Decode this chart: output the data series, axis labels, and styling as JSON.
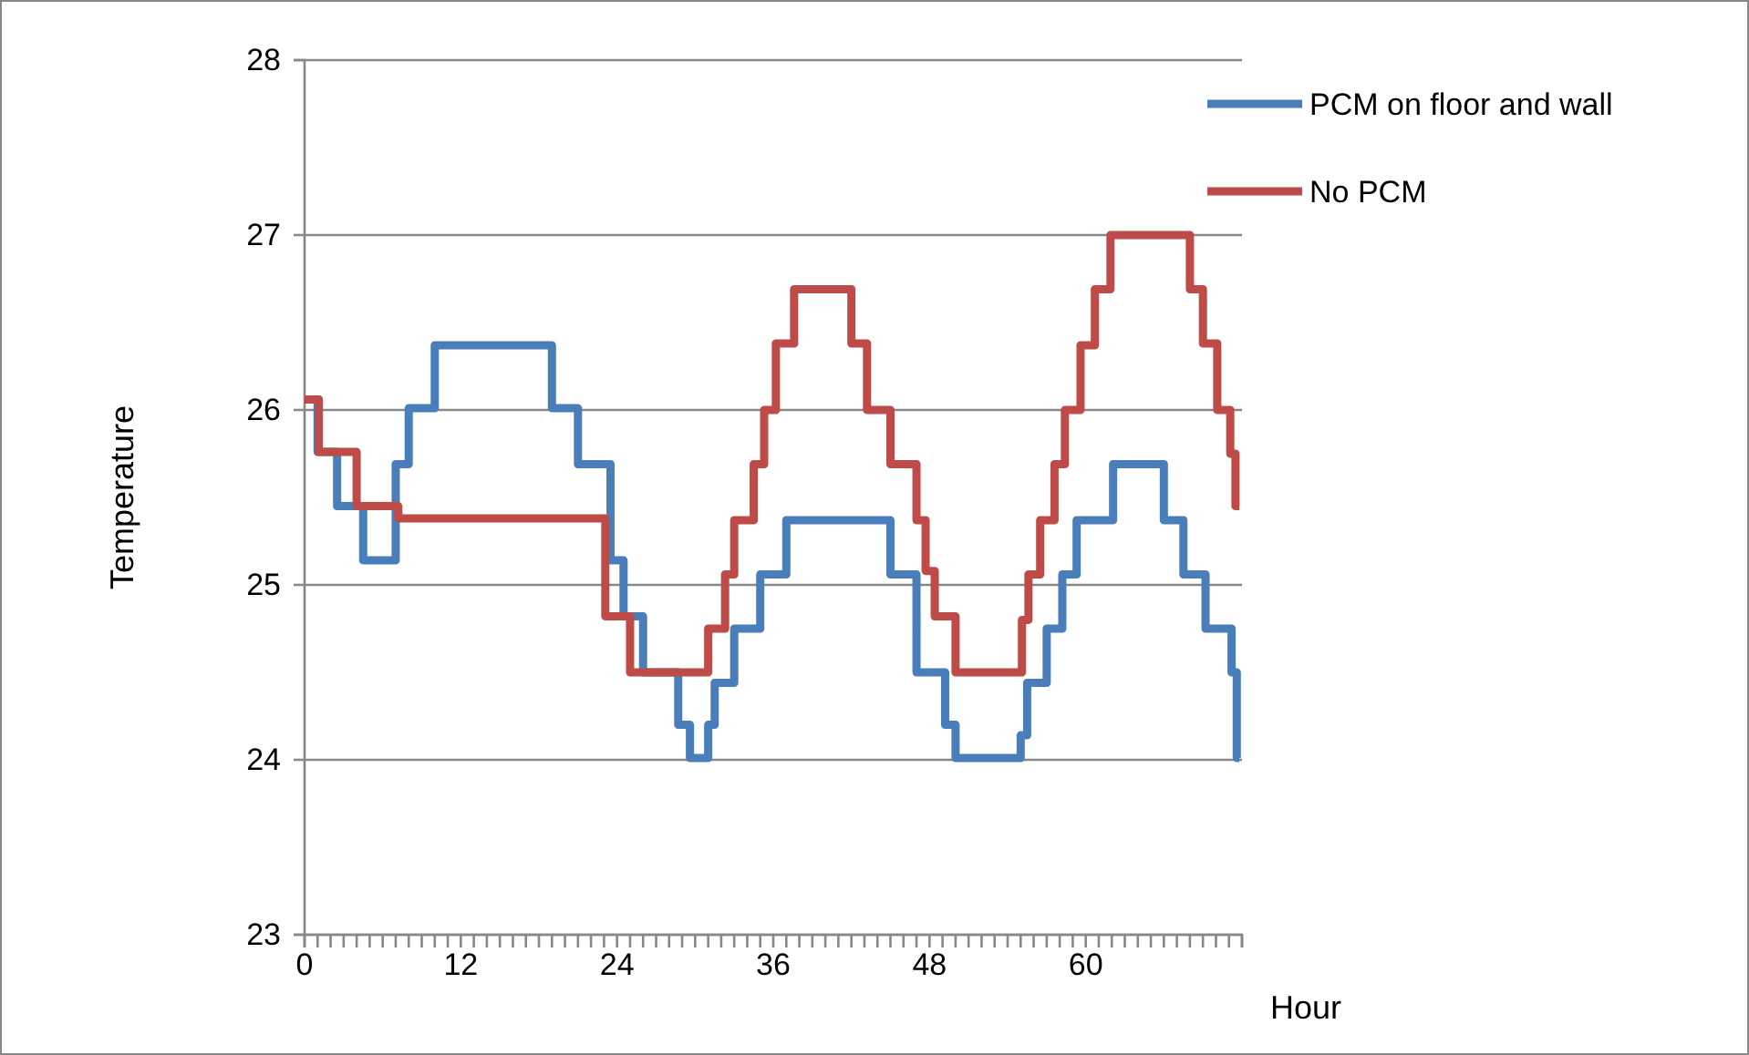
{
  "chart_data": {
    "type": "step",
    "xlabel": "Hour",
    "ylabel": "Temperature",
    "xlim": [
      0,
      72
    ],
    "ylim": [
      23,
      28
    ],
    "yticks": [
      23,
      24,
      25,
      26,
      27,
      28
    ],
    "xticks": [
      0,
      {
        "value": 1,
        "label": null
      },
      {
        "value": 2,
        "label": null
      },
      {
        "value": 3,
        "label": null
      },
      {
        "value": 4,
        "label": null
      },
      {
        "value": 5,
        "label": null
      },
      {
        "value": 6,
        "label": null
      },
      {
        "value": 7,
        "label": null
      },
      {
        "value": 8,
        "label": null
      },
      {
        "value": 9,
        "label": null
      },
      {
        "value": 10,
        "label": null
      },
      {
        "value": 11,
        "label": null
      },
      12,
      {
        "value": 13,
        "label": null
      },
      {
        "value": 14,
        "label": null
      },
      {
        "value": 15,
        "label": null
      },
      {
        "value": 16,
        "label": null
      },
      {
        "value": 17,
        "label": null
      },
      {
        "value": 18,
        "label": null
      },
      {
        "value": 19,
        "label": null
      },
      {
        "value": 20,
        "label": null
      },
      {
        "value": 21,
        "label": null
      },
      {
        "value": 22,
        "label": null
      },
      {
        "value": 23,
        "label": null
      },
      24,
      {
        "value": 25,
        "label": null
      },
      {
        "value": 26,
        "label": null
      },
      {
        "value": 27,
        "label": null
      },
      {
        "value": 28,
        "label": null
      },
      {
        "value": 29,
        "label": null
      },
      {
        "value": 30,
        "label": null
      },
      {
        "value": 31,
        "label": null
      },
      {
        "value": 32,
        "label": null
      },
      {
        "value": 33,
        "label": null
      },
      {
        "value": 34,
        "label": null
      },
      {
        "value": 35,
        "label": null
      },
      36,
      {
        "value": 37,
        "label": null
      },
      {
        "value": 38,
        "label": null
      },
      {
        "value": 39,
        "label": null
      },
      {
        "value": 40,
        "label": null
      },
      {
        "value": 41,
        "label": null
      },
      {
        "value": 42,
        "label": null
      },
      {
        "value": 43,
        "label": null
      },
      {
        "value": 44,
        "label": null
      },
      {
        "value": 45,
        "label": null
      },
      {
        "value": 46,
        "label": null
      },
      {
        "value": 47,
        "label": null
      },
      48,
      {
        "value": 49,
        "label": null
      },
      {
        "value": 50,
        "label": null
      },
      {
        "value": 51,
        "label": null
      },
      {
        "value": 52,
        "label": null
      },
      {
        "value": 53,
        "label": null
      },
      {
        "value": 54,
        "label": null
      },
      {
        "value": 55,
        "label": null
      },
      {
        "value": 56,
        "label": null
      },
      {
        "value": 57,
        "label": null
      },
      {
        "value": 58,
        "label": null
      },
      {
        "value": 59,
        "label": null
      },
      60,
      {
        "value": 61,
        "label": null
      },
      {
        "value": 62,
        "label": null
      },
      {
        "value": 63,
        "label": null
      },
      {
        "value": 64,
        "label": null
      },
      {
        "value": 65,
        "label": null
      },
      {
        "value": 66,
        "label": null
      },
      {
        "value": 67,
        "label": null
      },
      {
        "value": 68,
        "label": null
      },
      {
        "value": 69,
        "label": null
      },
      {
        "value": 70,
        "label": null
      },
      {
        "value": 71,
        "label": null
      },
      {
        "value": 72,
        "label": null
      }
    ],
    "grid": "y",
    "legend": "top right",
    "marker": "none",
    "line_style": "solid",
    "series": [
      {
        "name": "PCM on floor and wall",
        "color": "#4a7ebb",
        "x": [
          0,
          1,
          2.5,
          4.5,
          7,
          8,
          10,
          19,
          21,
          23.5,
          24.5,
          26,
          28.7,
          29.6,
          31,
          31.5,
          33,
          35,
          37,
          45,
          47,
          49.2,
          50,
          55,
          55.5,
          57,
          58.2,
          59.3,
          62.1,
          66,
          67.5,
          69.2,
          71.2,
          71.6,
          71.8
        ],
        "values": [
          26.06,
          25.76,
          25.45,
          25.14,
          25.69,
          26.01,
          26.37,
          26.01,
          25.69,
          25.14,
          24.82,
          24.5,
          24.2,
          24.01,
          24.2,
          24.44,
          24.75,
          25.06,
          25.37,
          25.06,
          24.5,
          24.2,
          24.01,
          24.14,
          24.44,
          24.75,
          25.06,
          25.37,
          25.69,
          25.37,
          25.06,
          24.75,
          24.5,
          24.01,
          24.01
        ]
      },
      {
        "name": "No PCM",
        "color": "#be4b48",
        "x": [
          0,
          1.1,
          4,
          7.2,
          23.1,
          25,
          31,
          32.3,
          33,
          34.5,
          35.3,
          36.2,
          37.6,
          42,
          43.2,
          45,
          47,
          47.7,
          48.4,
          50,
          55.1,
          55.6,
          56.5,
          57.6,
          58.4,
          59.6,
          60.7,
          61.9,
          68,
          69,
          70.1,
          71.1,
          71.5,
          71.8
        ],
        "values": [
          26.06,
          25.76,
          25.45,
          25.38,
          24.82,
          24.5,
          24.75,
          25.06,
          25.37,
          25.69,
          26.0,
          26.38,
          26.69,
          26.38,
          26.0,
          25.69,
          25.37,
          25.08,
          24.82,
          24.5,
          24.8,
          25.06,
          25.37,
          25.69,
          26.0,
          26.37,
          26.69,
          27.0,
          26.69,
          26.38,
          26.0,
          25.75,
          25.45,
          25.45
        ]
      }
    ]
  }
}
